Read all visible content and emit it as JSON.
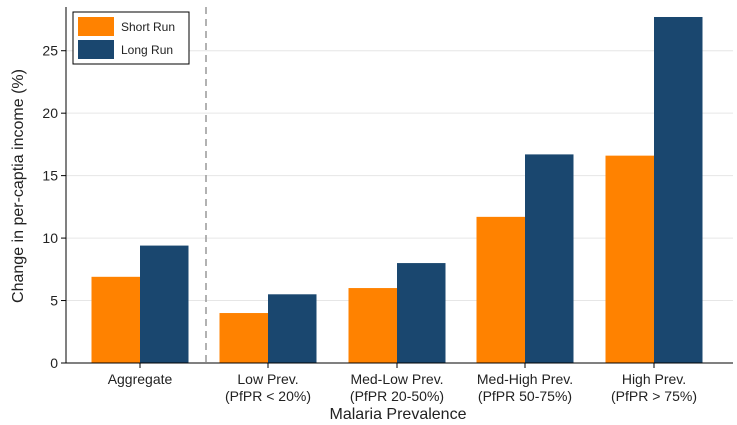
{
  "chart_data": {
    "type": "bar",
    "xlabel": "Malaria Prevalence",
    "ylabel": "Change in per-captia income (%)",
    "ylim": [
      0,
      28.5
    ],
    "yticks": [
      0,
      5,
      10,
      15,
      20,
      25
    ],
    "grid": true,
    "legend_position": "top-left",
    "separator_after_category": 0,
    "categories": [
      {
        "line1": "Aggregate",
        "line2": ""
      },
      {
        "line1": "Low Prev.",
        "line2": "(PfPR < 20%)"
      },
      {
        "line1": "Med-Low Prev.",
        "line2": "(PfPR 20-50%)"
      },
      {
        "line1": "Med-High Prev.",
        "line2": "(PfPR 50-75%)"
      },
      {
        "line1": "High Prev.",
        "line2": "(PfPR > 75%)"
      }
    ],
    "series": [
      {
        "name": "Short Run",
        "color": "#FF8200",
        "values": [
          6.9,
          4.0,
          6.0,
          11.7,
          16.6
        ]
      },
      {
        "name": "Long Run",
        "color": "#1A476F",
        "values": [
          9.4,
          5.5,
          8.0,
          16.7,
          27.7
        ]
      }
    ]
  }
}
